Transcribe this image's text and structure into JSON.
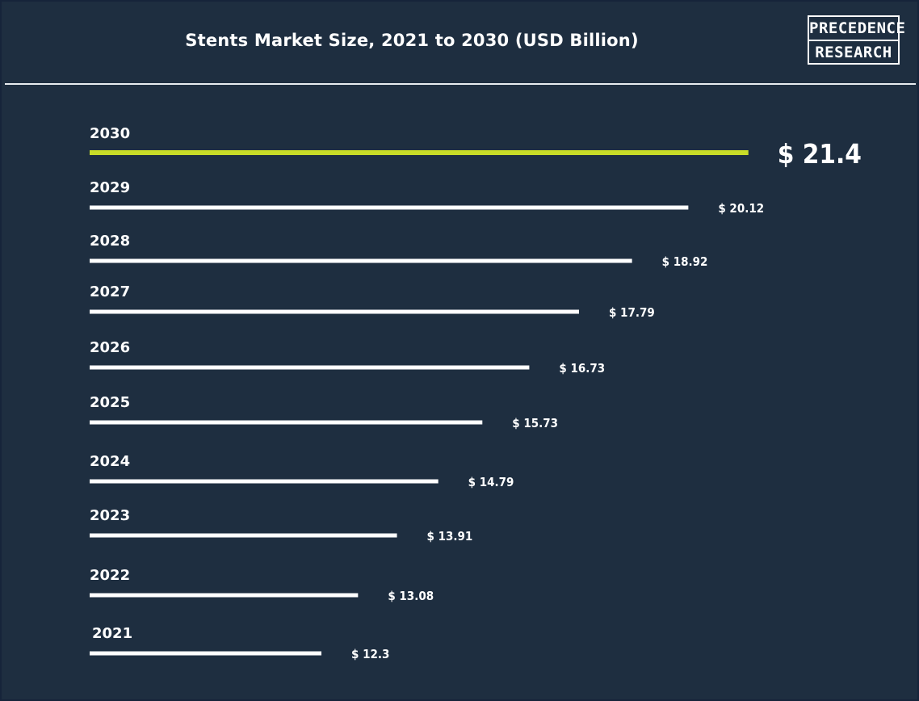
{
  "title": "Stents Market Size, 2021 to 2030 (USD Billion)",
  "logo": {
    "line1": "PRECEDENCE",
    "line2": "RESEARCH"
  },
  "colors": {
    "background": "#1e2e40",
    "bar": "#ffffff",
    "highlight": "#c8dc28",
    "text": "#ffffff"
  },
  "chart_data": {
    "type": "bar",
    "orientation": "horizontal",
    "title": "Stents Market Size, 2021 to 2030 (USD Billion)",
    "categories": [
      "2030",
      "2029",
      "2028",
      "2027",
      "2026",
      "2025",
      "2024",
      "2023",
      "2022",
      "2021"
    ],
    "values": [
      21.4,
      20.12,
      18.92,
      17.79,
      16.73,
      15.73,
      14.79,
      13.91,
      13.08,
      12.3
    ],
    "value_labels": [
      "$ 21.4",
      "$ 20.12",
      "$ 18.92",
      "$ 17.79",
      "$ 16.73",
      "$ 15.73",
      "$ 14.79",
      "$ 13.91",
      "$ 13.08",
      "$ 12.3"
    ],
    "highlight_category": "2030",
    "xlim": [
      7.36,
      21.4
    ],
    "grid": false,
    "legend": "none"
  }
}
